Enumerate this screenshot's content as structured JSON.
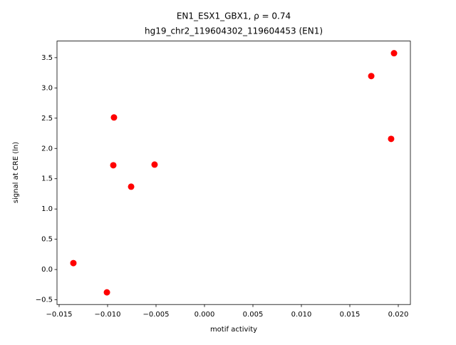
{
  "chart_data": {
    "type": "scatter",
    "title": "EN1_ESX1_GBX1, ρ = 0.74",
    "subtitle": "hg19_chr2_119604302_119604453 (EN1)",
    "x_label": "motif activity",
    "y_label": "signal at CRE (ln)",
    "color": "#ff0000",
    "x": [
      0.01956,
      0.01721,
      0.01926,
      -0.00934,
      -0.00941,
      -0.00515,
      -0.00757,
      -0.01353,
      -0.01007
    ],
    "values": [
      3.573,
      3.196,
      2.158,
      2.512,
      1.722,
      1.733,
      1.368,
      0.106,
      -0.377
    ],
    "xlim": [
      -0.01522,
      0.02125
    ],
    "ylim": [
      -0.578,
      3.774
    ],
    "xticks": [
      {
        "value": -0.015,
        "label": "−0.015"
      },
      {
        "value": -0.01,
        "label": "−0.010"
      },
      {
        "value": -0.005,
        "label": "−0.005"
      },
      {
        "value": 0,
        "label": "0.000"
      },
      {
        "value": 0.005,
        "label": "0.005"
      },
      {
        "value": 0.01,
        "label": "0.010"
      },
      {
        "value": 0.015,
        "label": "0.015"
      },
      {
        "value": 0.02,
        "label": "0.020"
      }
    ],
    "yticks": [
      {
        "value": -0.5,
        "label": "−0.5"
      },
      {
        "value": 0,
        "label": "0.0"
      },
      {
        "value": 0.5,
        "label": "0.5"
      },
      {
        "value": 1,
        "label": "1.0"
      },
      {
        "value": 1.5,
        "label": "1.5"
      },
      {
        "value": 2,
        "label": "2.0"
      },
      {
        "value": 2.5,
        "label": "2.5"
      },
      {
        "value": 3,
        "label": "3.0"
      },
      {
        "value": 3.5,
        "label": "3.5"
      }
    ]
  }
}
